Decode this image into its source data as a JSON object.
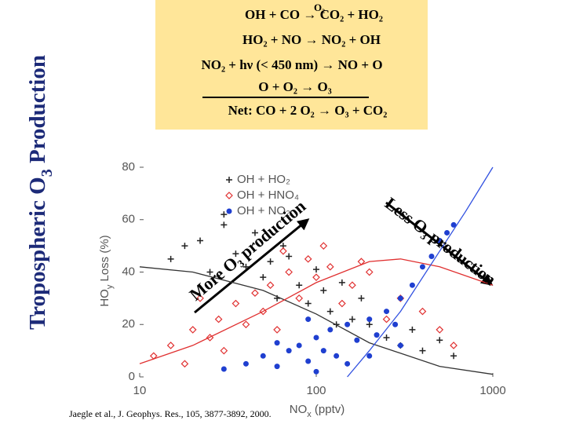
{
  "chart_data": {
    "type": "scatter",
    "title": [
      "Tropospheric O",
      "3",
      " Production"
    ],
    "reactions": [
      "OH + CO → CO₂ + HO₂",
      "HO₂ + NO → NO₂ + OH",
      "NO₂ + hν (< 450 nm) → NO + O",
      "O + O₂ → O₃",
      "Net: CO + 2 O₂ → O₃ + CO₂"
    ],
    "reaction_catalyst": "O₂",
    "annotations": [
      "More O₃ production",
      "Less O₃ production"
    ],
    "citation": "Jaegle et al., J. Geophys. Res., 105, 3877-3892, 2000.",
    "xlabel": [
      "NO",
      "x",
      " (pptv)"
    ],
    "ylabel": [
      "HO",
      "y",
      " Loss (%)"
    ],
    "xlim": [
      10,
      1000
    ],
    "xticks": [
      10,
      100,
      1000
    ],
    "xscale": "log",
    "ylim": [
      0,
      80
    ],
    "yticks": [
      0,
      20,
      40,
      60,
      80
    ],
    "legend": "upper left",
    "series": [
      {
        "name": "OH + HO₂",
        "type": "scatter",
        "marker": "plus",
        "color": "#222222",
        "x": [
          15,
          18,
          22,
          25,
          30,
          35,
          40,
          45,
          50,
          55,
          60,
          70,
          80,
          90,
          100,
          110,
          120,
          140,
          160,
          180,
          200,
          250,
          300,
          350,
          400,
          500,
          600,
          30,
          65,
          130
        ],
        "values": [
          45,
          50,
          52,
          40,
          58,
          47,
          42,
          55,
          38,
          44,
          30,
          46,
          35,
          28,
          41,
          33,
          25,
          36,
          22,
          30,
          20,
          15,
          12,
          18,
          10,
          14,
          8,
          62,
          50,
          20
        ]
      },
      {
        "name": "OH + HNO₄",
        "type": "scatter",
        "marker": "diamond",
        "color": "#e03030",
        "x": [
          12,
          15,
          18,
          20,
          25,
          28,
          30,
          35,
          40,
          45,
          50,
          55,
          60,
          70,
          80,
          90,
          100,
          120,
          140,
          160,
          200,
          250,
          300,
          400,
          500,
          600,
          22,
          65,
          110,
          180
        ],
        "values": [
          8,
          12,
          5,
          18,
          15,
          22,
          10,
          28,
          20,
          32,
          25,
          35,
          18,
          40,
          30,
          45,
          38,
          42,
          28,
          35,
          40,
          22,
          30,
          25,
          18,
          12,
          30,
          48,
          50,
          44
        ]
      },
      {
        "name": "OH + NO₂",
        "type": "scatter",
        "marker": "circle",
        "color": "#1f3fd0",
        "x": [
          30,
          40,
          50,
          60,
          70,
          80,
          90,
          100,
          110,
          120,
          130,
          150,
          170,
          200,
          220,
          250,
          280,
          300,
          350,
          400,
          450,
          500,
          550,
          600,
          100,
          150,
          200,
          60,
          90,
          300
        ],
        "values": [
          3,
          5,
          8,
          4,
          10,
          12,
          6,
          15,
          10,
          18,
          8,
          20,
          14,
          22,
          16,
          25,
          20,
          30,
          35,
          42,
          46,
          52,
          55,
          58,
          2,
          5,
          8,
          13,
          22,
          12
        ]
      },
      {
        "type": "line",
        "color": "#333333",
        "x": [
          10,
          20,
          50,
          100,
          200,
          500,
          1000
        ],
        "values": [
          42,
          40,
          33,
          24,
          13,
          4,
          1
        ]
      },
      {
        "type": "line",
        "color": "#e03030",
        "x": [
          10,
          20,
          50,
          100,
          200,
          300,
          500,
          1000
        ],
        "values": [
          5,
          12,
          25,
          36,
          44,
          45,
          42,
          35
        ]
      },
      {
        "type": "line",
        "color": "#3050e0",
        "x": [
          150,
          200,
          300,
          500,
          700,
          1000
        ],
        "values": [
          0,
          10,
          25,
          48,
          63,
          80
        ]
      }
    ]
  }
}
